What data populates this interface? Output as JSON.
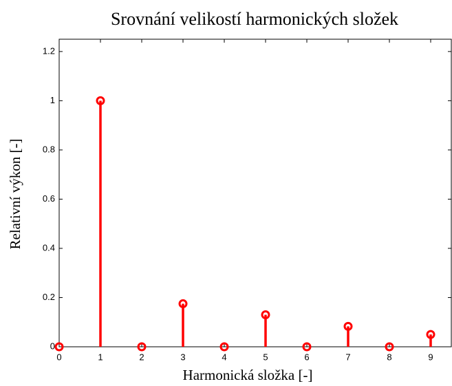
{
  "chart_data": {
    "type": "stem",
    "title": "Srovnání velikostí harmonických složek",
    "x_label": "Harmonická složka [-]",
    "y_label": "Relativní výkon [-]",
    "x": [
      0,
      1,
      2,
      3,
      4,
      5,
      6,
      7,
      8,
      9
    ],
    "values": [
      0,
      1,
      0,
      0.175,
      0,
      0.13,
      0,
      0.083,
      0,
      0.05
    ],
    "color": "#ff0000",
    "xlim": [
      0,
      9.5
    ],
    "xticks": [
      0,
      1,
      2,
      3,
      4,
      5,
      6,
      7,
      8,
      9
    ],
    "ylim": [
      0,
      1.25
    ],
    "yticks": [
      0,
      0.2,
      0.4,
      0.6,
      0.8,
      1,
      1.2
    ],
    "grid": false
  }
}
